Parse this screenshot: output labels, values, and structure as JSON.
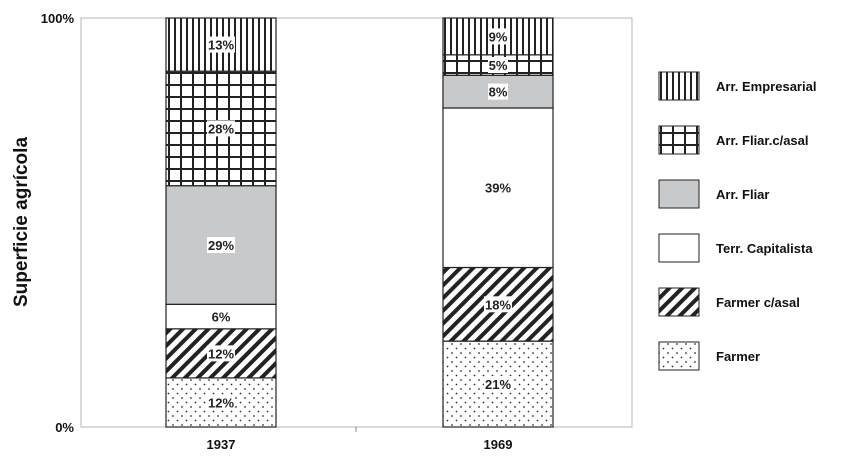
{
  "chart_data": {
    "type": "bar",
    "stacked": true,
    "percent": true,
    "title": "",
    "xlabel": "",
    "ylabel": "Superficie agrícola",
    "ylim": [
      0,
      100
    ],
    "y_ticks": [
      "0%",
      "100%"
    ],
    "categories": [
      "1937",
      "1969"
    ],
    "series": [
      {
        "name": "Farmer",
        "values": [
          12,
          21
        ],
        "labels": [
          "12%",
          "21%"
        ],
        "pattern": "dots"
      },
      {
        "name": "Farmer c/asal",
        "values": [
          12,
          18
        ],
        "labels": [
          "12%",
          "18%"
        ],
        "pattern": "diagonal"
      },
      {
        "name": "Terr. Capitalista",
        "values": [
          6,
          39
        ],
        "labels": [
          "6%",
          "39%"
        ],
        "pattern": "white"
      },
      {
        "name": "Arr. Fliar",
        "values": [
          29,
          8
        ],
        "labels": [
          "29%",
          "8%"
        ],
        "pattern": "gray"
      },
      {
        "name": "Arr. Fliar.c/asal",
        "values": [
          28,
          5
        ],
        "labels": [
          "28%",
          "5%"
        ],
        "pattern": "grid"
      },
      {
        "name": "Arr. Empresarial",
        "values": [
          13,
          9
        ],
        "labels": [
          "13%",
          "9%"
        ],
        "pattern": "vertical"
      }
    ],
    "legend_position": "right",
    "grid": false,
    "colors": {
      "gray": "#c8c9cb",
      "stroke": "#222222"
    }
  }
}
